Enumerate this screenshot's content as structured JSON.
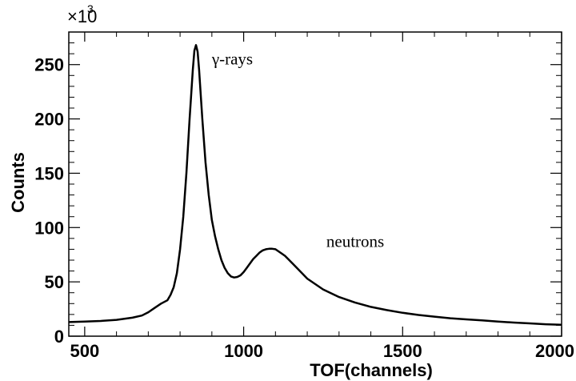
{
  "chart_data": {
    "type": "line",
    "xlabel": "TOF(channels)",
    "ylabel": "Counts",
    "y_scale_label": "×10",
    "y_scale_exponent": "3",
    "xlim": [
      450,
      2000
    ],
    "ylim": [
      0,
      280
    ],
    "x_ticks": [
      "500",
      "1000",
      "1500",
      "2000"
    ],
    "y_ticks": [
      "0",
      "50",
      "100",
      "150",
      "200",
      "250"
    ],
    "x_tick_values": [
      500,
      1000,
      1500,
      2000
    ],
    "y_tick_values": [
      0,
      50,
      100,
      150,
      200,
      250
    ],
    "annotations": [
      {
        "text": "γ-rays",
        "x": 900,
        "y": 250
      },
      {
        "text": "neutrons",
        "x": 1260,
        "y": 82
      }
    ],
    "series": [
      {
        "x": [
          450,
          500,
          550,
          600,
          650,
          680,
          700,
          720,
          740,
          760,
          770,
          780,
          790,
          800,
          810,
          820,
          830,
          840,
          845,
          850,
          855,
          860,
          870,
          880,
          890,
          900,
          910,
          920,
          930,
          940,
          950,
          960,
          970,
          980,
          990,
          1000,
          1010,
          1020,
          1030,
          1040,
          1050,
          1060,
          1070,
          1080,
          1090,
          1100,
          1110,
          1120,
          1130,
          1140,
          1160,
          1180,
          1200,
          1250,
          1300,
          1350,
          1400,
          1450,
          1500,
          1550,
          1600,
          1650,
          1700,
          1750,
          1800,
          1850,
          1900,
          1950,
          2000
        ],
        "y": [
          13,
          13.5,
          14,
          15,
          17,
          19,
          22,
          26,
          30,
          33,
          38,
          45,
          58,
          80,
          110,
          150,
          200,
          245,
          263,
          268,
          262,
          245,
          200,
          160,
          130,
          107,
          92,
          80,
          70,
          63,
          58,
          55,
          54,
          54.5,
          56,
          59,
          63,
          67,
          71,
          74,
          77,
          79,
          80,
          80.5,
          80.5,
          80,
          78,
          76,
          74,
          71,
          65,
          59,
          53,
          43,
          36,
          31,
          27,
          24,
          21.5,
          19.5,
          18,
          16.5,
          15.5,
          14.5,
          13.5,
          12.5,
          11.8,
          11,
          10.5
        ]
      }
    ]
  }
}
